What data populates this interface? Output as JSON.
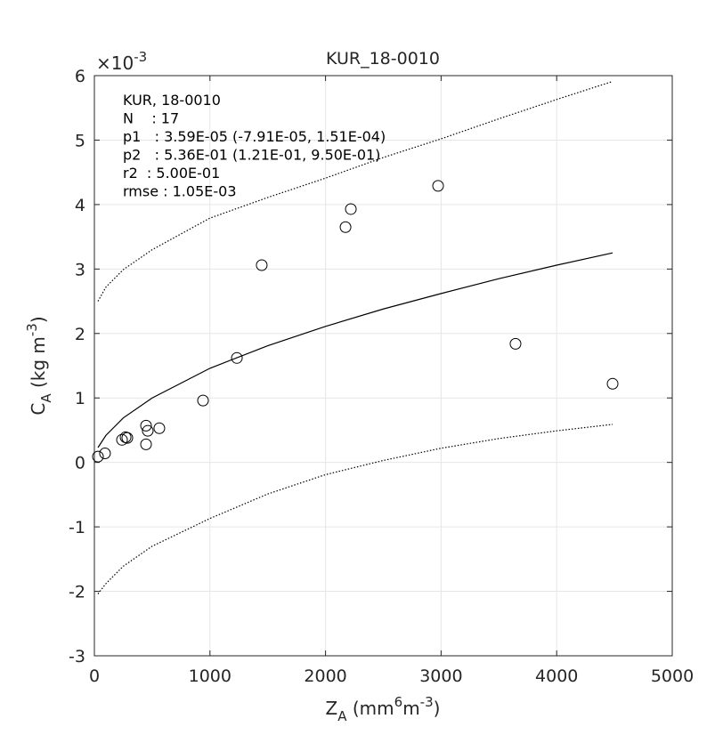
{
  "chart_data": {
    "type": "scatter",
    "title": "KUR_18-0010",
    "y_multiplier": [
      {
        "text": "×10",
        "shift": "none"
      },
      {
        "text": "-3",
        "shift": "sup"
      }
    ],
    "xlabel": [
      {
        "text": "Z",
        "shift": "none"
      },
      {
        "text": "A",
        "shift": "sub"
      },
      {
        "text": " (mm",
        "shift": "none"
      },
      {
        "text": "6",
        "shift": "sup"
      },
      {
        "text": "m",
        "shift": "none"
      },
      {
        "text": "-3",
        "shift": "sup"
      },
      {
        "text": ")",
        "shift": "none"
      }
    ],
    "ylabel": [
      {
        "text": "C",
        "shift": "none"
      },
      {
        "text": "A",
        "shift": "sub"
      },
      {
        "text": " (kg m",
        "shift": "none"
      },
      {
        "text": "-3",
        "shift": "sup"
      },
      {
        "text": ")",
        "shift": "none"
      }
    ],
    "annotations": [
      "KUR, 18-0010",
      "N    : 17",
      "p1   : 3.59E-05 (-7.91E-05, 1.51E-04)",
      "p2   : 5.36E-01 (1.21E-01, 9.50E-01)",
      "r2  : 5.00E-01",
      "rmse : 1.05E-03"
    ],
    "xlim": [
      0,
      5000
    ],
    "xticks": [
      0,
      1000,
      2000,
      3000,
      4000,
      5000
    ],
    "ylim": [
      -3,
      6
    ],
    "yticks": [
      -3,
      -2,
      -1,
      0,
      1,
      2,
      3,
      4,
      5,
      6
    ],
    "grid": true,
    "series": [
      {
        "color": "#000000",
        "marker": "o",
        "linestyle": "none",
        "x": [
          31,
          92,
          239,
          270,
          285,
          447,
          462,
          447,
          562,
          940,
          1233,
          1448,
          2173,
          2219,
          2974,
          3644,
          4484
        ],
        "values": [
          0.09,
          0.14,
          0.35,
          0.39,
          0.38,
          0.57,
          0.49,
          0.28,
          0.53,
          0.96,
          1.62,
          3.06,
          3.65,
          3.93,
          4.29,
          1.84,
          1.22
        ]
      },
      {
        "color": "#000000",
        "marker": "none",
        "linestyle": "solid",
        "x": [
          31,
          100,
          250,
          500,
          1000,
          1500,
          2000,
          2500,
          3000,
          3500,
          4000,
          4484
        ],
        "values": [
          0.23,
          0.42,
          0.69,
          1.0,
          1.46,
          1.81,
          2.11,
          2.38,
          2.62,
          2.85,
          3.06,
          3.25
        ]
      },
      {
        "color": "#000000",
        "marker": "none",
        "linestyle": "dotted",
        "x": [
          31,
          100,
          250,
          500,
          1000,
          1500,
          2000,
          2500,
          3000,
          3500,
          4000,
          4484
        ],
        "values": [
          2.5,
          2.72,
          2.99,
          3.3,
          3.79,
          4.11,
          4.41,
          4.73,
          5.02,
          5.33,
          5.63,
          5.91
        ]
      },
      {
        "color": "#000000",
        "marker": "none",
        "linestyle": "dotted",
        "x": [
          31,
          100,
          250,
          500,
          1000,
          1500,
          2000,
          2500,
          3000,
          3500,
          4000,
          4484
        ],
        "values": [
          -2.04,
          -1.88,
          -1.61,
          -1.3,
          -0.87,
          -0.49,
          -0.19,
          0.03,
          0.22,
          0.37,
          0.49,
          0.59
        ]
      }
    ]
  }
}
